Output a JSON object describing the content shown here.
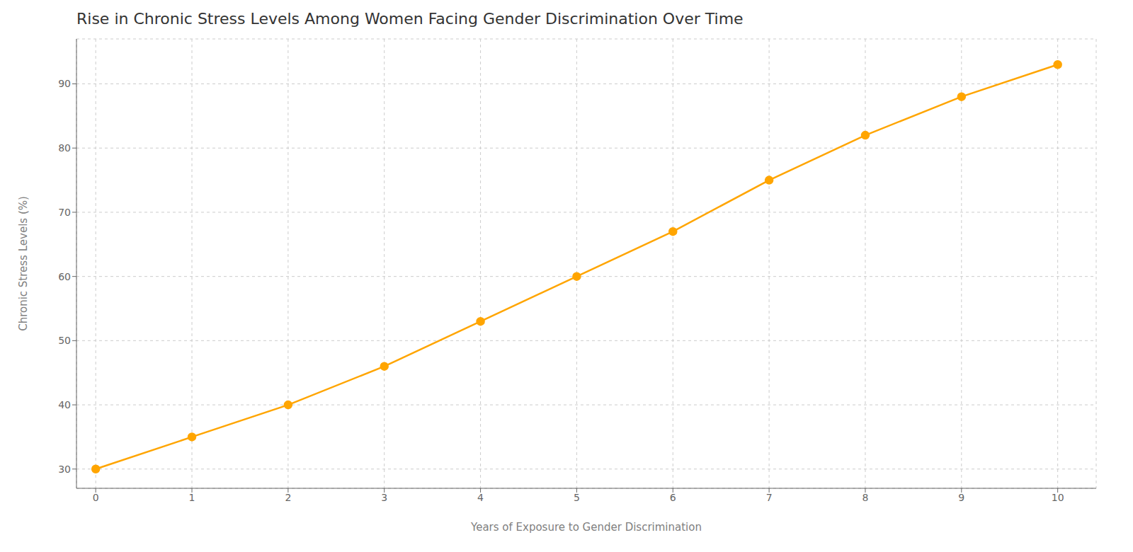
{
  "chart_data": {
    "type": "line",
    "title": "Rise in Chronic Stress Levels Among Women Facing Gender Discrimination Over Time",
    "xlabel": "Years of Exposure to Gender Discrimination",
    "ylabel": "Chronic Stress Levels (%)",
    "x": [
      0,
      1,
      2,
      3,
      4,
      5,
      6,
      7,
      8,
      9,
      10
    ],
    "values": [
      30,
      35,
      40,
      46,
      53,
      60,
      67,
      75,
      82,
      88,
      93
    ],
    "color": "#FFA500",
    "marker": "circle",
    "xlim": [
      -0.2,
      10.4
    ],
    "ylim": [
      27,
      97
    ],
    "xticks": [
      0,
      1,
      2,
      3,
      4,
      5,
      6,
      7,
      8,
      9,
      10
    ],
    "yticks": [
      30,
      40,
      50,
      60,
      70,
      80,
      90
    ],
    "grid": true
  }
}
